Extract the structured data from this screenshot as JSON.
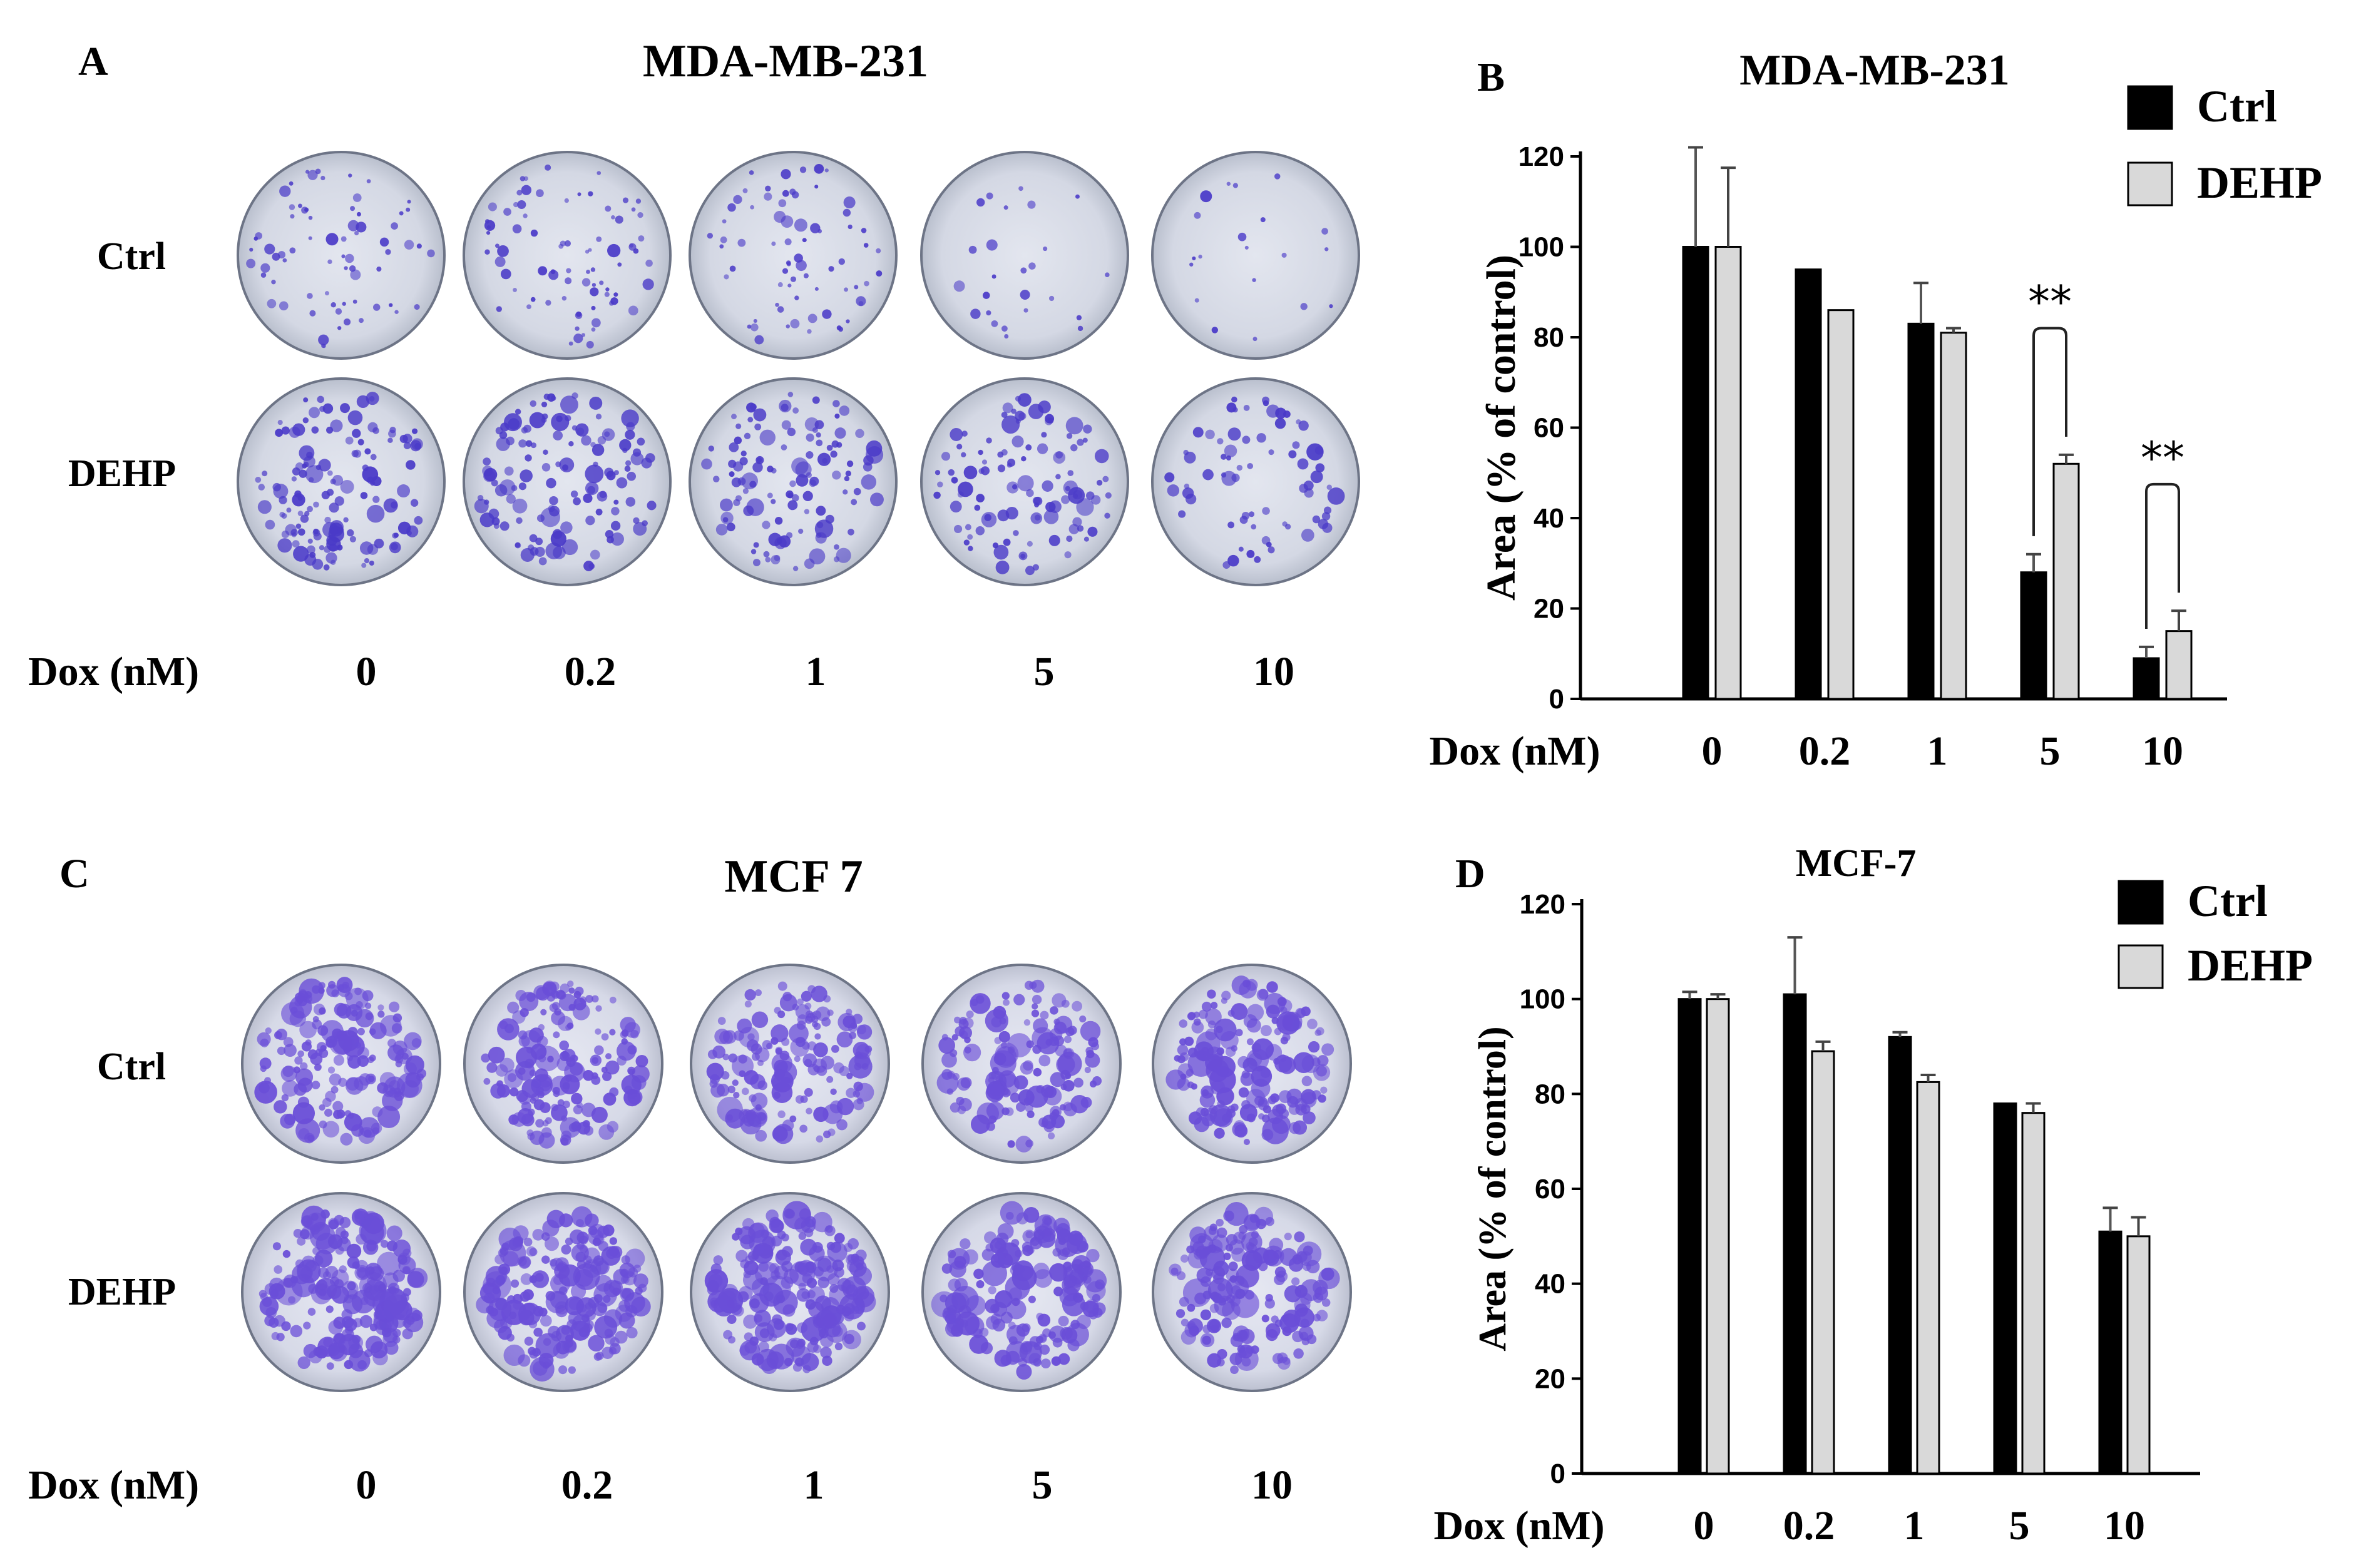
{
  "figure": {
    "panel_a": {
      "letter": "A",
      "title": "MDA-MB-231",
      "row_labels": [
        "Ctrl",
        "DEHP"
      ],
      "x_axis_label": "Dox (nM)",
      "doses": [
        "0",
        "0.2",
        "1",
        "5",
        "10"
      ],
      "plate_colors": {
        "background": "#d6dbe6",
        "colony": "#4a3ac8",
        "rim": "#707888"
      }
    },
    "panel_c": {
      "letter": "C",
      "title": "MCF 7",
      "row_labels": [
        "Ctrl",
        "DEHP"
      ],
      "x_axis_label": "Dox (nM)",
      "doses": [
        "0",
        "0.2",
        "1",
        "5",
        "10"
      ],
      "plate_colors": {
        "background": "#d8dbe8",
        "colony": "#6a4ed8",
        "rim": "#707888"
      }
    }
  },
  "chart_data": [
    {
      "panel": "B",
      "type": "bar",
      "title": "MDA-MB-231",
      "xlabel": "Dox (nM)",
      "ylabel": "Area (% of control)",
      "categories": [
        "0",
        "0.2",
        "1",
        "5",
        "10"
      ],
      "ylim": [
        0,
        120
      ],
      "yticks": [
        "0",
        "20",
        "40",
        "60",
        "80",
        "100",
        "120"
      ],
      "series": [
        {
          "name": "Ctrl",
          "color": "#000000",
          "values": [
            100,
            95,
            83,
            28,
            9
          ],
          "errors": [
            22,
            0,
            9,
            4,
            2.5
          ]
        },
        {
          "name": "DEHP",
          "color": "#d9d9d9",
          "values": [
            100,
            86,
            81,
            52,
            15
          ],
          "errors": [
            17.5,
            0,
            1,
            2,
            4.5
          ]
        }
      ],
      "significance": [
        {
          "category": "5",
          "label": "**"
        },
        {
          "category": "10",
          "label": "**"
        }
      ],
      "legend_placement": "top-right"
    },
    {
      "panel": "D",
      "type": "bar",
      "title": "MCF-7",
      "xlabel": "Dox (nM)",
      "ylabel": "Area (% of control)",
      "categories": [
        "0",
        "0.2",
        "1",
        "5",
        "10"
      ],
      "ylim": [
        0,
        120
      ],
      "yticks": [
        "0",
        "20",
        "40",
        "60",
        "80",
        "100",
        "120"
      ],
      "series": [
        {
          "name": "Ctrl",
          "color": "#000000",
          "values": [
            100,
            101,
            92,
            78,
            51
          ],
          "errors": [
            1.5,
            12,
            1,
            0,
            5
          ]
        },
        {
          "name": "DEHP",
          "color": "#d9d9d9",
          "values": [
            100,
            89,
            82.5,
            76,
            50
          ],
          "errors": [
            1,
            2,
            1.5,
            2,
            4
          ]
        }
      ],
      "significance": [],
      "legend_placement": "top-right"
    }
  ]
}
